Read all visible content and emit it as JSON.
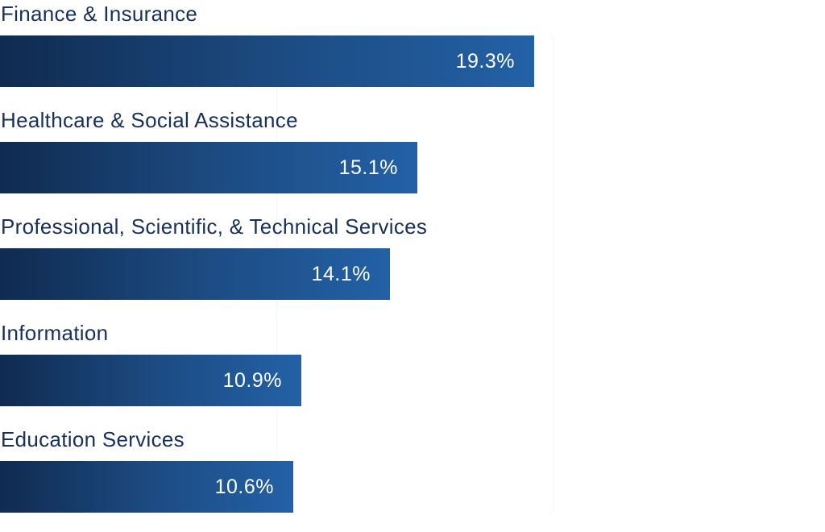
{
  "chart_data": {
    "type": "bar",
    "orientation": "horizontal",
    "categories": [
      "Finance & Insurance",
      "Healthcare & Social Assistance",
      "Professional, Scientific, & Technical Services",
      "Information",
      "Education Services"
    ],
    "values": [
      19.3,
      15.1,
      14.1,
      10.9,
      10.6
    ],
    "value_labels": [
      "19.3%",
      "15.1%",
      "14.1%",
      "10.9%",
      "10.6%"
    ],
    "unit": "%",
    "xlim": [
      0,
      30
    ],
    "gridlines": [
      10,
      20
    ],
    "grid": true,
    "colors": {
      "bar_start": "#0f2b50",
      "bar_end": "#2361a6",
      "label": "#17315a",
      "value_label": "#ffffff"
    }
  }
}
